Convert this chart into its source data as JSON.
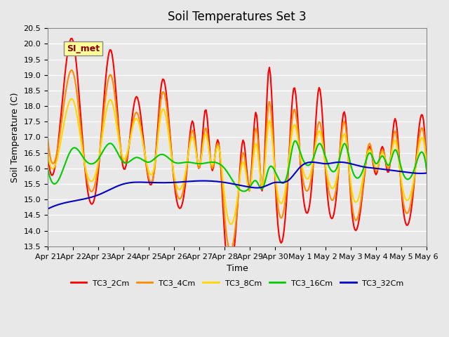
{
  "title": "Soil Temperatures Set 3",
  "xlabel": "Time",
  "ylabel": "Soil Temperature (C)",
  "ylim": [
    13.5,
    20.5
  ],
  "series_colors": {
    "TC3_2Cm": "#FF0000",
    "TC3_4Cm": "#FF8C00",
    "TC3_8Cm": "#FFD700",
    "TC3_16Cm": "#00CC00",
    "TC3_32Cm": "#0000CC"
  },
  "legend_labels": [
    "TC3_2Cm",
    "TC3_4Cm",
    "TC3_8Cm",
    "TC3_16Cm",
    "TC3_32Cm"
  ],
  "x_tick_labels": [
    "Apr 21",
    "Apr 22",
    "Apr 23",
    "Apr 24",
    "Apr 25",
    "Apr 26",
    "Apr 27",
    "Apr 28",
    "Apr 29",
    "Apr 30",
    "May 1",
    "May 2",
    "May 3",
    "May 4",
    "May 5",
    "May 6"
  ],
  "x_tick_positions": [
    0,
    1,
    2,
    3,
    4,
    5,
    6,
    7,
    8,
    9,
    10,
    11,
    12,
    13,
    14,
    15
  ],
  "annotation_text": "SI_met",
  "bg_color": "#E8E8E8",
  "linewidth": 1.5,
  "grid_color": "#FFFFFF",
  "yticks": [
    13.5,
    14.0,
    14.5,
    15.0,
    15.5,
    16.0,
    16.5,
    17.0,
    17.5,
    18.0,
    18.5,
    19.0,
    19.5,
    20.0,
    20.5
  ]
}
